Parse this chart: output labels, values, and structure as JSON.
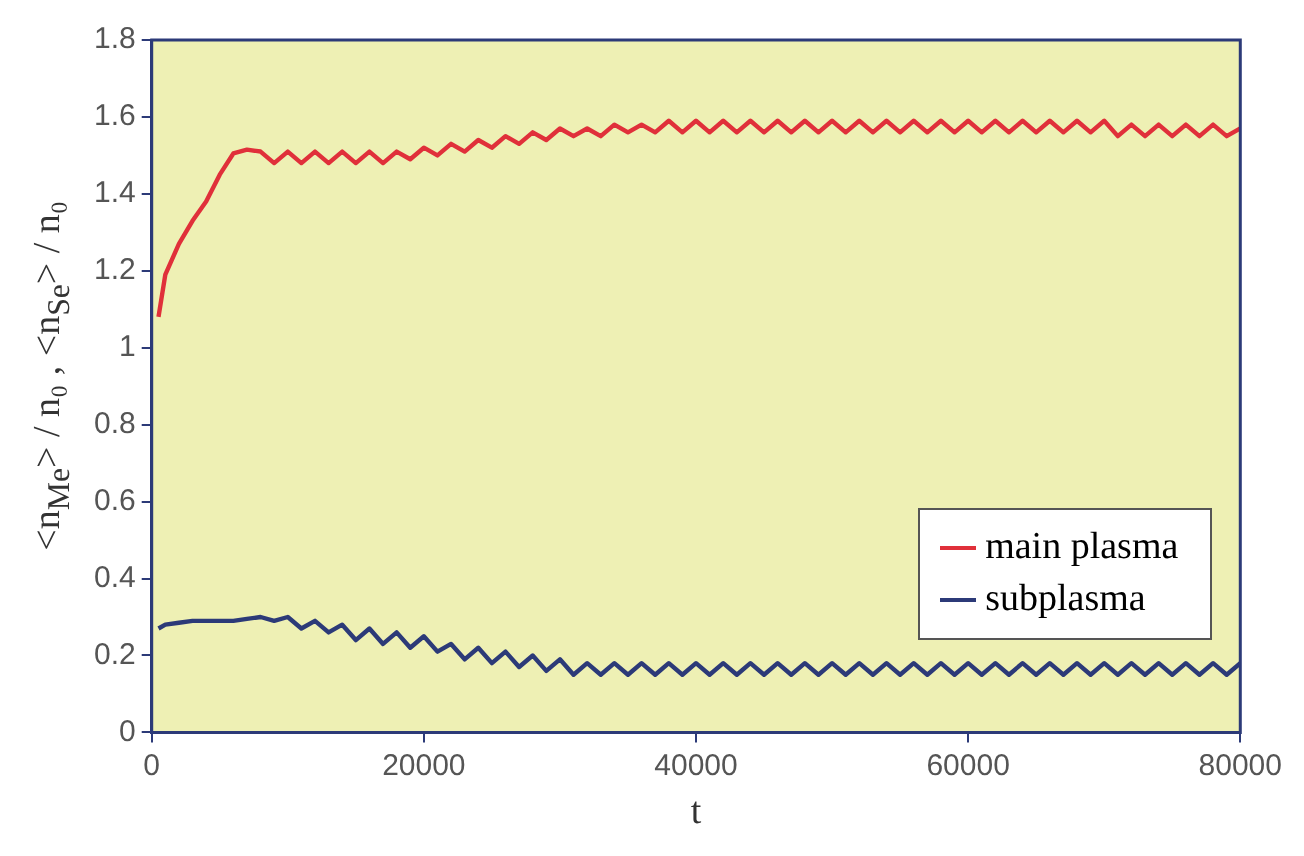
{
  "chart_data": {
    "type": "line",
    "xlabel": "t",
    "ylabel": "<n$_{Me}$> / n₀ , <n$_{Se}$> / n₀",
    "xlim": [
      0,
      80000
    ],
    "xticks": [
      0,
      20000,
      40000,
      60000,
      80000
    ],
    "ylim": [
      0,
      1.8
    ],
    "yticks": [
      0,
      0.2,
      0.4,
      0.6,
      0.8,
      1,
      1.2,
      1.4,
      1.6,
      1.8
    ],
    "grid": false,
    "legend": "bottom right",
    "marker": "none",
    "line_style": "solid",
    "series": [
      {
        "name": "main plasma",
        "color": "#e0303a",
        "x": [
          500,
          1000,
          2000,
          3000,
          4000,
          5000,
          6000,
          7000,
          8000,
          9000,
          10000,
          11000,
          12000,
          13000,
          14000,
          15000,
          16000,
          17000,
          18000,
          19000,
          20000,
          21000,
          22000,
          23000,
          24000,
          25000,
          26000,
          27000,
          28000,
          29000,
          30000,
          31000,
          32000,
          33000,
          34000,
          35000,
          36000,
          37000,
          38000,
          39000,
          40000,
          41000,
          42000,
          43000,
          44000,
          45000,
          46000,
          47000,
          48000,
          49000,
          50000,
          51000,
          52000,
          53000,
          54000,
          55000,
          56000,
          57000,
          58000,
          59000,
          60000,
          61000,
          62000,
          63000,
          64000,
          65000,
          66000,
          67000,
          68000,
          69000,
          70000,
          71000,
          72000,
          73000,
          74000,
          75000,
          76000,
          77000,
          78000,
          79000,
          80000
        ],
        "values": [
          1.08,
          1.19,
          1.27,
          1.33,
          1.38,
          1.45,
          1.505,
          1.515,
          1.51,
          1.48,
          1.51,
          1.48,
          1.51,
          1.48,
          1.51,
          1.48,
          1.51,
          1.48,
          1.51,
          1.49,
          1.52,
          1.5,
          1.53,
          1.51,
          1.54,
          1.52,
          1.55,
          1.53,
          1.56,
          1.54,
          1.57,
          1.55,
          1.57,
          1.55,
          1.58,
          1.56,
          1.58,
          1.56,
          1.59,
          1.56,
          1.59,
          1.56,
          1.59,
          1.56,
          1.59,
          1.56,
          1.59,
          1.56,
          1.59,
          1.56,
          1.59,
          1.56,
          1.59,
          1.56,
          1.59,
          1.56,
          1.59,
          1.56,
          1.59,
          1.56,
          1.59,
          1.56,
          1.59,
          1.56,
          1.59,
          1.56,
          1.59,
          1.56,
          1.59,
          1.56,
          1.59,
          1.55,
          1.58,
          1.55,
          1.58,
          1.55,
          1.58,
          1.55,
          1.58,
          1.55,
          1.57
        ]
      },
      {
        "name": "subplasma",
        "color": "#2c3a78",
        "x": [
          500,
          1000,
          2000,
          3000,
          4000,
          5000,
          6000,
          7000,
          8000,
          9000,
          10000,
          11000,
          12000,
          13000,
          14000,
          15000,
          16000,
          17000,
          18000,
          19000,
          20000,
          21000,
          22000,
          23000,
          24000,
          25000,
          26000,
          27000,
          28000,
          29000,
          30000,
          31000,
          32000,
          33000,
          34000,
          35000,
          36000,
          37000,
          38000,
          39000,
          40000,
          41000,
          42000,
          43000,
          44000,
          45000,
          46000,
          47000,
          48000,
          49000,
          50000,
          51000,
          52000,
          53000,
          54000,
          55000,
          56000,
          57000,
          58000,
          59000,
          60000,
          61000,
          62000,
          63000,
          64000,
          65000,
          66000,
          67000,
          68000,
          69000,
          70000,
          71000,
          72000,
          73000,
          74000,
          75000,
          76000,
          77000,
          78000,
          79000,
          80000
        ],
        "values": [
          0.27,
          0.28,
          0.285,
          0.29,
          0.29,
          0.29,
          0.29,
          0.295,
          0.3,
          0.29,
          0.3,
          0.27,
          0.29,
          0.26,
          0.28,
          0.24,
          0.27,
          0.23,
          0.26,
          0.22,
          0.25,
          0.21,
          0.23,
          0.19,
          0.22,
          0.18,
          0.21,
          0.17,
          0.2,
          0.16,
          0.19,
          0.15,
          0.18,
          0.15,
          0.18,
          0.15,
          0.18,
          0.15,
          0.18,
          0.15,
          0.18,
          0.15,
          0.18,
          0.15,
          0.18,
          0.15,
          0.18,
          0.15,
          0.18,
          0.15,
          0.18,
          0.15,
          0.18,
          0.15,
          0.18,
          0.15,
          0.18,
          0.15,
          0.18,
          0.15,
          0.18,
          0.15,
          0.18,
          0.15,
          0.18,
          0.15,
          0.18,
          0.15,
          0.18,
          0.15,
          0.18,
          0.15,
          0.18,
          0.15,
          0.18,
          0.15,
          0.18,
          0.15,
          0.18,
          0.15,
          0.18
        ]
      }
    ]
  }
}
